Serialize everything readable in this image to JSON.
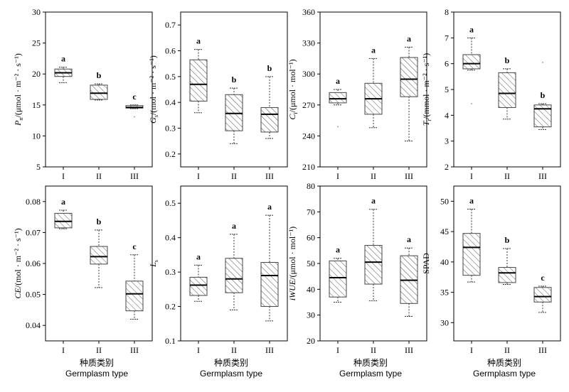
{
  "chart_data": [
    {
      "type": "box",
      "ylabel_main": "P",
      "ylabel_sub": "n",
      "ylabel_rest": "/(μmol · m⁻² · s⁻¹)",
      "ylim": [
        5,
        30
      ],
      "yticks": [
        "5",
        "10",
        "15",
        "20",
        "25",
        "30"
      ],
      "categories": [
        "I",
        "II",
        "III"
      ],
      "boxes": [
        {
          "min": 18.6,
          "q1": 19.6,
          "median": 20.2,
          "q3": 20.8,
          "max": 21.1,
          "letter": "a"
        },
        {
          "min": 15.8,
          "q1": 15.9,
          "median": 16.9,
          "q3": 18.2,
          "max": 18.4,
          "letter": "b"
        },
        {
          "min": 14.4,
          "q1": 14.5,
          "median": 14.6,
          "q3": 14.9,
          "max": 15.0,
          "letter": "c"
        }
      ],
      "outliers": [
        {
          "category": 2,
          "value": 13.1
        }
      ]
    },
    {
      "type": "box",
      "ylabel_main": "G",
      "ylabel_sub": "s",
      "ylabel_rest": "/(mol · m⁻² · s⁻¹)",
      "ylim": [
        0.15,
        0.75
      ],
      "yticks": [
        "0.2",
        "0.3",
        "0.4",
        "0.5",
        "0.6",
        "0.7"
      ],
      "categories": [
        "I",
        "II",
        "III"
      ],
      "boxes": [
        {
          "min": 0.36,
          "q1": 0.405,
          "median": 0.47,
          "q3": 0.565,
          "max": 0.605,
          "letter": "a"
        },
        {
          "min": 0.24,
          "q1": 0.29,
          "median": 0.357,
          "q3": 0.43,
          "max": 0.455,
          "letter": "b"
        },
        {
          "min": 0.26,
          "q1": 0.285,
          "median": 0.354,
          "q3": 0.38,
          "max": 0.5,
          "letter": "b"
        }
      ],
      "outliers": []
    },
    {
      "type": "box",
      "ylabel_main": "C",
      "ylabel_sub": "i",
      "ylabel_rest": "/(μmol · mol⁻¹)",
      "ylim": [
        210,
        360
      ],
      "yticks": [
        "210",
        "240",
        "270",
        "300",
        "330",
        "360"
      ],
      "categories": [
        "I",
        "II",
        "III"
      ],
      "boxes": [
        {
          "min": 270,
          "q1": 272,
          "median": 276,
          "q3": 282,
          "max": 285,
          "letter": "a"
        },
        {
          "min": 248,
          "q1": 261,
          "median": 276,
          "q3": 291,
          "max": 315,
          "letter": "a"
        },
        {
          "min": 235,
          "q1": 278,
          "median": 295,
          "q3": 316,
          "max": 326,
          "letter": "a"
        }
      ],
      "outliers": [
        {
          "category": 0,
          "value": 249
        }
      ]
    },
    {
      "type": "box",
      "ylabel_main": "T",
      "ylabel_sub": "r",
      "ylabel_rest": "/(mmol · m⁻² · s⁻¹)",
      "ylim": [
        2,
        8
      ],
      "yticks": [
        "2",
        "3",
        "4",
        "5",
        "6",
        "7",
        "8"
      ],
      "categories": [
        "I",
        "II",
        "III"
      ],
      "boxes": [
        {
          "min": 5.75,
          "q1": 5.8,
          "median": 6.0,
          "q3": 6.35,
          "max": 7.0,
          "letter": "a"
        },
        {
          "min": 3.85,
          "q1": 4.3,
          "median": 4.85,
          "q3": 5.65,
          "max": 5.8,
          "letter": "b"
        },
        {
          "min": 3.45,
          "q1": 3.55,
          "median": 4.25,
          "q3": 4.4,
          "max": 4.45,
          "letter": "b"
        }
      ],
      "outliers": [
        {
          "category": 0,
          "value": 4.45
        },
        {
          "category": 2,
          "value": 6.05
        }
      ]
    },
    {
      "type": "box",
      "ylabel_main": "CE",
      "ylabel_sub": "",
      "ylabel_rest": "/(mol · m⁻² · s⁻¹)",
      "ylim": [
        0.035,
        0.085
      ],
      "yticks": [
        "0.04",
        "0.05",
        "0.06",
        "0.07",
        "0.08"
      ],
      "categories": [
        "I",
        "II",
        "III"
      ],
      "boxes": [
        {
          "min": 0.0712,
          "q1": 0.0715,
          "median": 0.0736,
          "q3": 0.0762,
          "max": 0.0772,
          "letter": "a"
        },
        {
          "min": 0.0522,
          "q1": 0.0598,
          "median": 0.0622,
          "q3": 0.0655,
          "max": 0.0708,
          "letter": "b"
        },
        {
          "min": 0.042,
          "q1": 0.0447,
          "median": 0.0502,
          "q3": 0.0543,
          "max": 0.0628,
          "letter": "c"
        }
      ],
      "outliers": []
    },
    {
      "type": "box",
      "ylabel_main": "L",
      "ylabel_sub": "s",
      "ylabel_rest": "",
      "ylim": [
        0.1,
        0.55
      ],
      "yticks": [
        "0.1",
        "0.2",
        "0.3",
        "0.4",
        "0.5"
      ],
      "categories": [
        "I",
        "II",
        "III"
      ],
      "boxes": [
        {
          "min": 0.215,
          "q1": 0.232,
          "median": 0.262,
          "q3": 0.285,
          "max": 0.32,
          "letter": "a"
        },
        {
          "min": 0.19,
          "q1": 0.24,
          "median": 0.28,
          "q3": 0.34,
          "max": 0.41,
          "letter": "a"
        },
        {
          "min": 0.158,
          "q1": 0.2,
          "median": 0.29,
          "q3": 0.328,
          "max": 0.465,
          "letter": "a"
        }
      ],
      "outliers": []
    },
    {
      "type": "box",
      "ylabel_main": "iWUE",
      "ylabel_sub": "",
      "ylabel_rest": "/(μmol · mol⁻¹)",
      "ylim": [
        20,
        80
      ],
      "yticks": [
        "20",
        "30",
        "40",
        "50",
        "60",
        "70",
        "80"
      ],
      "categories": [
        "I",
        "II",
        "III"
      ],
      "boxes": [
        {
          "min": 35,
          "q1": 37,
          "median": 44.5,
          "q3": 51,
          "max": 52,
          "letter": "a"
        },
        {
          "min": 35.5,
          "q1": 42,
          "median": 50.5,
          "q3": 57,
          "max": 71,
          "letter": "a"
        },
        {
          "min": 29.5,
          "q1": 34.5,
          "median": 43.5,
          "q3": 53,
          "max": 56,
          "letter": "a"
        }
      ],
      "outliers": []
    },
    {
      "type": "box",
      "ylabel_main": "SPAD",
      "ylabel_sub": "",
      "ylabel_rest": "",
      "ylim": [
        27,
        52.5
      ],
      "yticks": [
        "30",
        "35",
        "40",
        "45",
        "50"
      ],
      "categories": [
        "I",
        "II",
        "III"
      ],
      "boxes": [
        {
          "min": 36.7,
          "q1": 37.8,
          "median": 42.4,
          "q3": 44.7,
          "max": 48.7,
          "letter": "a"
        },
        {
          "min": 36.3,
          "q1": 36.6,
          "median": 38.2,
          "q3": 39.1,
          "max": 42.2,
          "letter": "b"
        },
        {
          "min": 31.7,
          "q1": 33.4,
          "median": 34.3,
          "q3": 35.8,
          "max": 36.0,
          "letter": "c"
        }
      ],
      "outliers": []
    }
  ],
  "x_caption_cn": "种质类别",
  "x_caption_en": "Germplasm type"
}
